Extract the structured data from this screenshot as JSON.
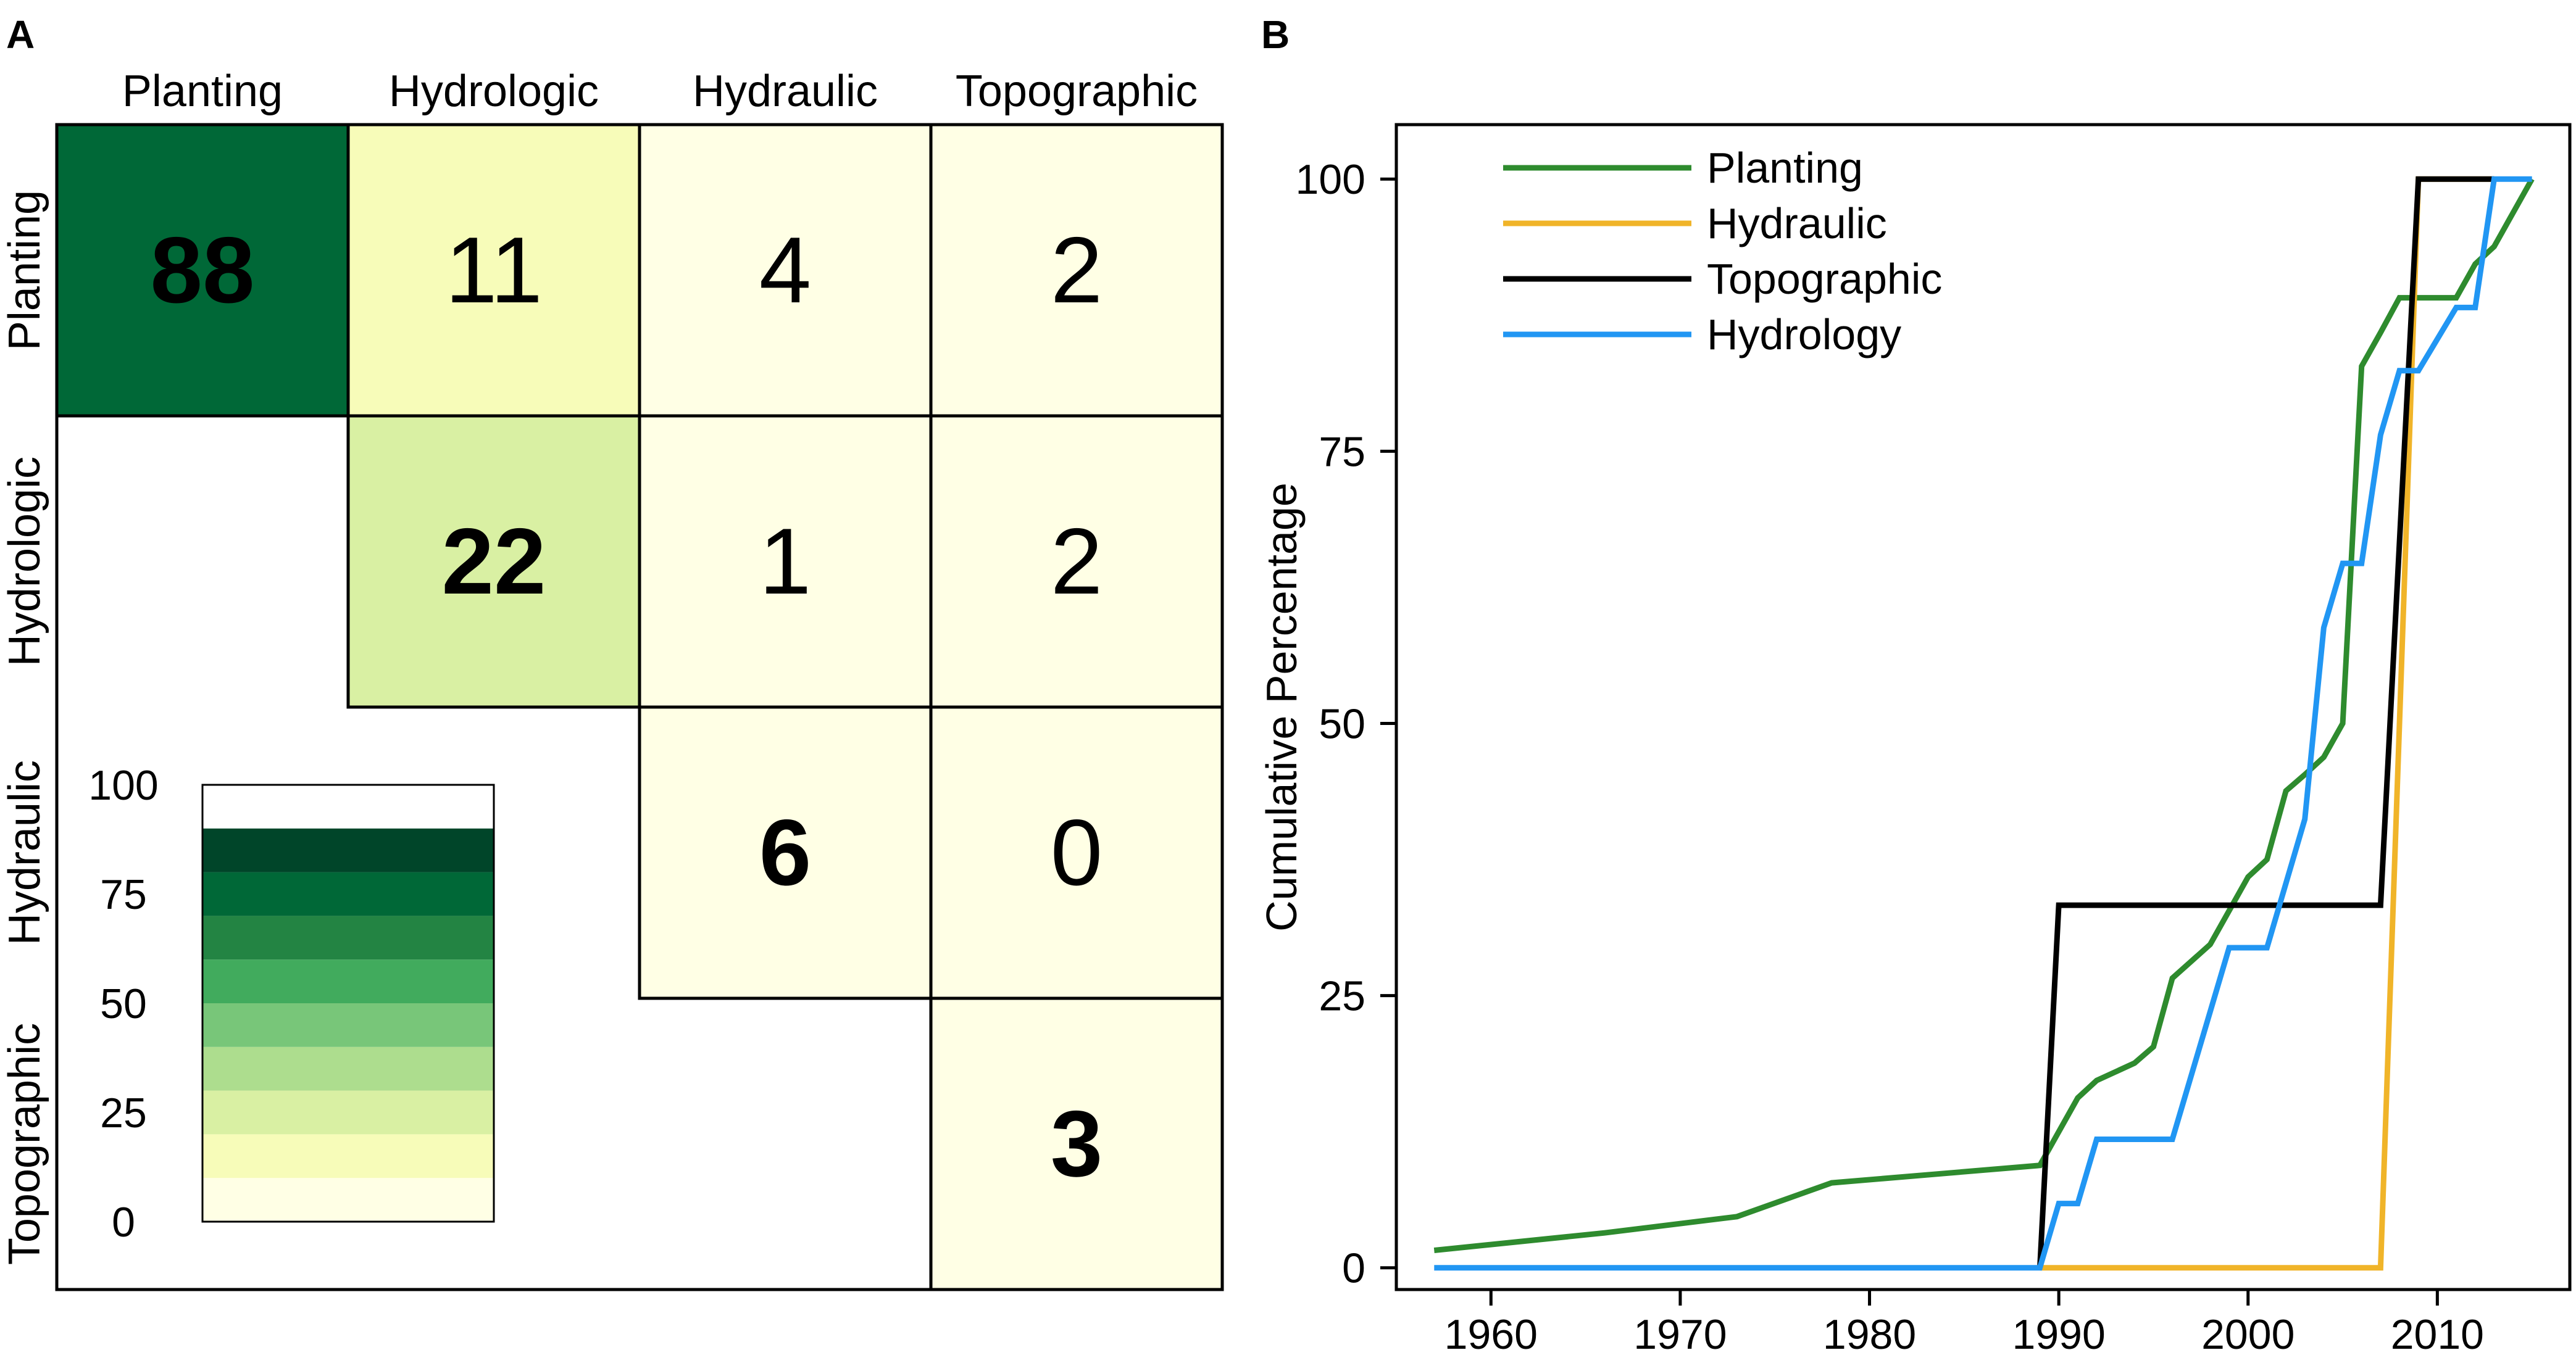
{
  "panel_labels": [
    "A",
    "B"
  ],
  "colors": {
    "scale": [
      "#ffffe5",
      "#f7fcb9",
      "#d9f0a3",
      "#addd8e",
      "#78c679",
      "#41ab5d",
      "#238443",
      "#006837",
      "#004529"
    ],
    "planting": "#2e8b2e",
    "hydraulic": "#f0b429",
    "topographic": "#000000",
    "hydrology": "#2196f3"
  },
  "chart_data": [
    {
      "type": "heatmap",
      "panel": "A",
      "categories": [
        "Planting",
        "Hydrologic",
        "Hydraulic",
        "Topographic"
      ],
      "cells": [
        {
          "row": 0,
          "col": 0,
          "value": 88,
          "label": "88",
          "bold": true
        },
        {
          "row": 0,
          "col": 1,
          "value": 11,
          "label": "11",
          "bold": false
        },
        {
          "row": 0,
          "col": 2,
          "value": 4,
          "label": "4",
          "bold": false
        },
        {
          "row": 0,
          "col": 3,
          "value": 2,
          "label": "2",
          "bold": false
        },
        {
          "row": 1,
          "col": 1,
          "value": 22,
          "label": "22",
          "bold": true
        },
        {
          "row": 1,
          "col": 2,
          "value": 1,
          "label": "1",
          "bold": false
        },
        {
          "row": 1,
          "col": 3,
          "value": 2,
          "label": "2",
          "bold": false
        },
        {
          "row": 2,
          "col": 2,
          "value": 6,
          "label": "6",
          "bold": true
        },
        {
          "row": 2,
          "col": 3,
          "value": 0,
          "label": "0",
          "bold": false
        },
        {
          "row": 3,
          "col": 3,
          "value": 3,
          "label": "3",
          "bold": true
        }
      ],
      "colorbar": {
        "ticks": [
          "100",
          "75",
          "50",
          "25",
          "0"
        ],
        "min": 0,
        "max": 100
      }
    },
    {
      "type": "line",
      "panel": "B",
      "title": "",
      "xlabel": "",
      "ylabel": "Cumulative Percentage",
      "xlim": [
        1955,
        2017
      ],
      "ylim": [
        -2,
        105
      ],
      "xticks": [
        1960,
        1970,
        1980,
        1990,
        2000,
        2010
      ],
      "yticks": [
        0,
        25,
        50,
        75,
        100
      ],
      "legend_position": "top-left",
      "series": [
        {
          "name": "Planting",
          "color_key": "planting",
          "points": [
            [
              1957,
              1.6
            ],
            [
              1966,
              3.2
            ],
            [
              1973,
              4.7
            ],
            [
              1978,
              7.8
            ],
            [
              1989,
              9.4
            ],
            [
              1991,
              15.6
            ],
            [
              1992,
              17.2
            ],
            [
              1994,
              18.8
            ],
            [
              1995,
              20.3
            ],
            [
              1996,
              26.6
            ],
            [
              1998,
              29.7
            ],
            [
              2000,
              35.9
            ],
            [
              2001,
              37.5
            ],
            [
              2002,
              43.8
            ],
            [
              2003,
              45.3
            ],
            [
              2004,
              46.9
            ],
            [
              2005,
              50.0
            ],
            [
              2006,
              82.8
            ],
            [
              2007,
              85.9
            ],
            [
              2008,
              89.1
            ],
            [
              2011,
              89.1
            ],
            [
              2012,
              92.2
            ],
            [
              2013,
              93.8
            ],
            [
              2014,
              96.9
            ],
            [
              2015,
              100
            ]
          ]
        },
        {
          "name": "Hydraulic",
          "color_key": "hydraulic",
          "points": [
            [
              1989,
              0
            ],
            [
              2007,
              0
            ],
            [
              2009,
              100
            ],
            [
              2013,
              100
            ]
          ]
        },
        {
          "name": "Topographic",
          "color_key": "topographic",
          "points": [
            [
              1989,
              0
            ],
            [
              1990,
              33.3
            ],
            [
              2007,
              33.3
            ],
            [
              2009,
              100
            ],
            [
              2013,
              100
            ]
          ]
        },
        {
          "name": "Hydrology",
          "color_key": "hydrology",
          "points": [
            [
              1957,
              0
            ],
            [
              1989,
              0
            ],
            [
              1990,
              5.9
            ],
            [
              1991,
              5.9
            ],
            [
              1992,
              11.8
            ],
            [
              1996,
              11.8
            ],
            [
              1999,
              29.4
            ],
            [
              2001,
              29.4
            ],
            [
              2003,
              41.2
            ],
            [
              2004,
              58.8
            ],
            [
              2005,
              64.7
            ],
            [
              2006,
              64.7
            ],
            [
              2007,
              76.5
            ],
            [
              2008,
              82.4
            ],
            [
              2009,
              82.4
            ],
            [
              2011,
              88.2
            ],
            [
              2012,
              88.2
            ],
            [
              2013,
              100
            ],
            [
              2015,
              100
            ]
          ]
        }
      ]
    }
  ]
}
